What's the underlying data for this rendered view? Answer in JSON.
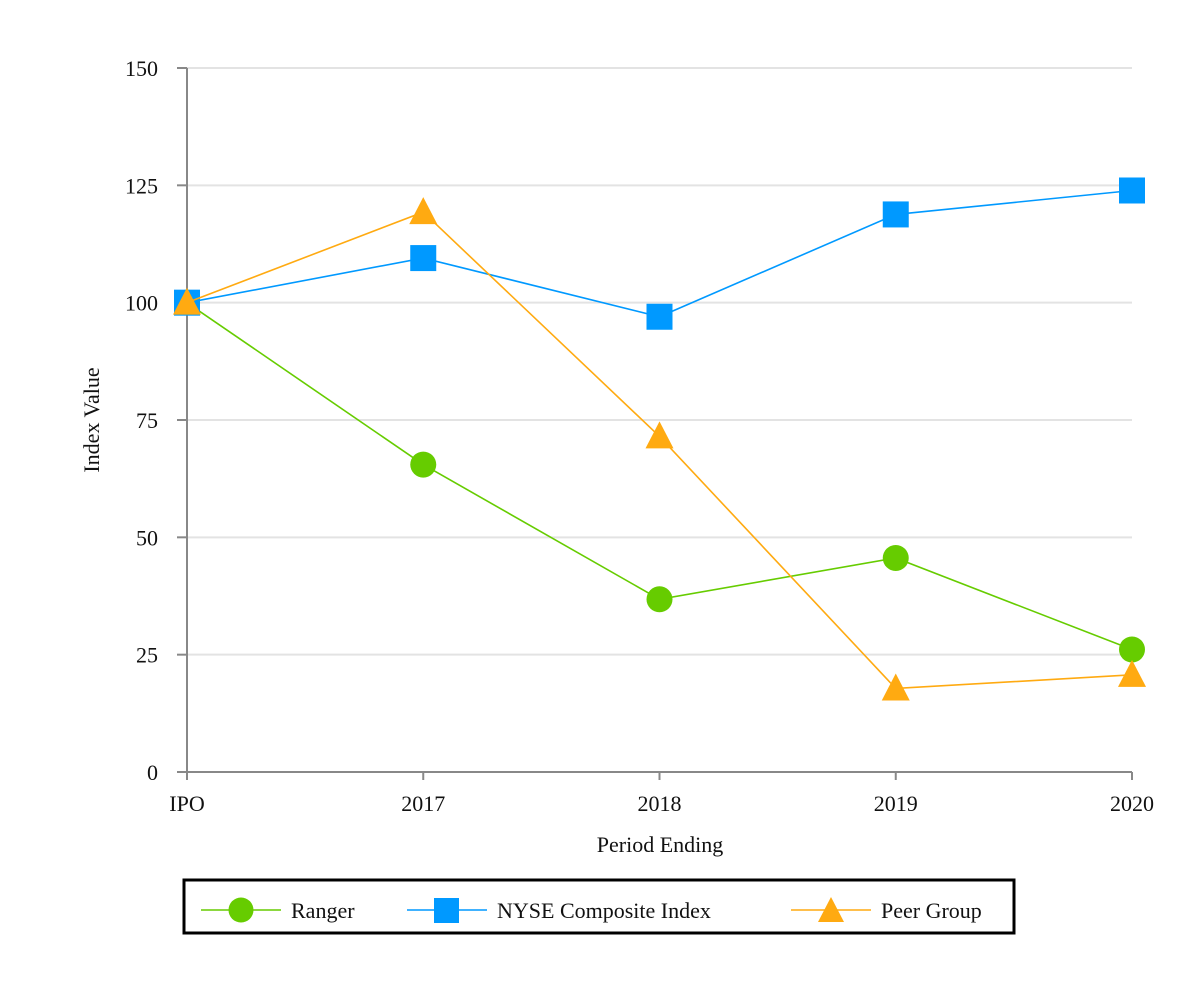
{
  "chart_data": {
    "type": "line",
    "title": "",
    "xlabel": "Period Ending",
    "ylabel": "Index Value",
    "categories": [
      "IPO",
      "2017",
      "2018",
      "2019",
      "2020"
    ],
    "ylim": [
      0,
      150
    ],
    "yticks": [
      0,
      25,
      50,
      75,
      100,
      125,
      150
    ],
    "grid": true,
    "legend_position": "bottom-center",
    "series": [
      {
        "name": "Ranger",
        "color": "#66cc00",
        "marker": "circle",
        "values": [
          100,
          65.5,
          36.8,
          45.6,
          26.1
        ]
      },
      {
        "name": "NYSE Composite Index",
        "color": "#0099ff",
        "marker": "square",
        "values": [
          100,
          109.5,
          97.0,
          118.8,
          123.9
        ]
      },
      {
        "name": "Peer Group",
        "color": "#ffaa11",
        "marker": "triangle",
        "values": [
          100,
          119.3,
          71.5,
          17.8,
          20.7
        ]
      }
    ]
  }
}
